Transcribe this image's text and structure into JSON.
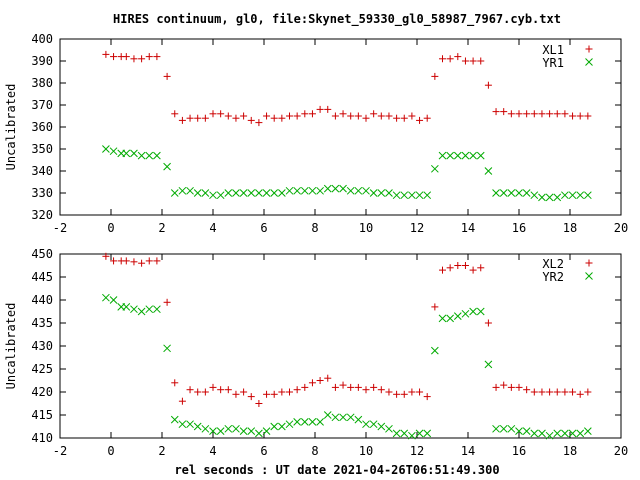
{
  "title": "HIRES continuum, gl0, file:Skynet_59330_gl0_58987_7967.cyb.txt",
  "colors": {
    "red": "#cc0000",
    "green": "#00aa00",
    "axis": "#000000"
  },
  "chart_data": [
    {
      "type": "scatter",
      "panel": "top",
      "ylabel": "Uncalibrated",
      "xlabel": "",
      "xlim": [
        -2,
        20
      ],
      "ylim": [
        320,
        400
      ],
      "xticks": [
        -2,
        0,
        2,
        4,
        6,
        8,
        10,
        12,
        14,
        16,
        18,
        20
      ],
      "yticks": [
        320,
        330,
        340,
        350,
        360,
        370,
        380,
        390,
        400
      ],
      "legend_position": "top-right",
      "series": [
        {
          "name": "XL1",
          "marker": "plus",
          "color": "#cc0000",
          "x": [
            -0.2,
            0.1,
            0.4,
            0.6,
            0.9,
            1.2,
            1.5,
            1.8,
            2.2,
            2.5,
            2.8,
            3.1,
            3.4,
            3.7,
            4.0,
            4.3,
            4.6,
            4.9,
            5.2,
            5.5,
            5.8,
            6.1,
            6.4,
            6.7,
            7.0,
            7.3,
            7.6,
            7.9,
            8.2,
            8.5,
            8.8,
            9.1,
            9.4,
            9.7,
            10.0,
            10.3,
            10.6,
            10.9,
            11.2,
            11.5,
            11.8,
            12.1,
            12.4,
            12.7,
            13.0,
            13.3,
            13.6,
            13.9,
            14.2,
            14.5,
            14.8,
            15.1,
            15.4,
            15.7,
            16.0,
            16.3,
            16.6,
            16.9,
            17.2,
            17.5,
            17.8,
            18.1,
            18.4,
            18.7
          ],
          "y": [
            393,
            392,
            392,
            392,
            391,
            391,
            392,
            392,
            383,
            366,
            363,
            364,
            364,
            364,
            366,
            366,
            365,
            364,
            365,
            363,
            362,
            365,
            364,
            364,
            365,
            365,
            366,
            366,
            368,
            368,
            365,
            366,
            365,
            365,
            364,
            366,
            365,
            365,
            364,
            364,
            365,
            363,
            364,
            383,
            391,
            391,
            392,
            390,
            390,
            390,
            379,
            367,
            367,
            366,
            366,
            366,
            366,
            366,
            366,
            366,
            366,
            365,
            365,
            365
          ]
        },
        {
          "name": "YR1",
          "marker": "x",
          "color": "#00aa00",
          "x": [
            -0.2,
            0.1,
            0.4,
            0.6,
            0.9,
            1.2,
            1.5,
            1.8,
            2.2,
            2.5,
            2.8,
            3.1,
            3.4,
            3.7,
            4.0,
            4.3,
            4.6,
            4.9,
            5.2,
            5.5,
            5.8,
            6.1,
            6.4,
            6.7,
            7.0,
            7.3,
            7.6,
            7.9,
            8.2,
            8.5,
            8.8,
            9.1,
            9.4,
            9.7,
            10.0,
            10.3,
            10.6,
            10.9,
            11.2,
            11.5,
            11.8,
            12.1,
            12.4,
            12.7,
            13.0,
            13.3,
            13.6,
            13.9,
            14.2,
            14.5,
            14.8,
            15.1,
            15.4,
            15.7,
            16.0,
            16.3,
            16.6,
            16.9,
            17.2,
            17.5,
            17.8,
            18.1,
            18.4,
            18.7
          ],
          "y": [
            350,
            349,
            348,
            348,
            348,
            347,
            347,
            347,
            342,
            330,
            331,
            331,
            330,
            330,
            329,
            329,
            330,
            330,
            330,
            330,
            330,
            330,
            330,
            330,
            331,
            331,
            331,
            331,
            331,
            332,
            332,
            332,
            331,
            331,
            331,
            330,
            330,
            330,
            329,
            329,
            329,
            329,
            329,
            341,
            347,
            347,
            347,
            347,
            347,
            347,
            340,
            330,
            330,
            330,
            330,
            330,
            329,
            328,
            328,
            328,
            329,
            329,
            329,
            329
          ]
        }
      ]
    },
    {
      "type": "scatter",
      "panel": "bottom",
      "ylabel": "Uncalibrated",
      "xlabel": "rel seconds : UT date 2021-04-26T06:51:49.300",
      "xlim": [
        -2,
        20
      ],
      "ylim": [
        410,
        450
      ],
      "xticks": [
        -2,
        0,
        2,
        4,
        6,
        8,
        10,
        12,
        14,
        16,
        18,
        20
      ],
      "yticks": [
        410,
        415,
        420,
        425,
        430,
        435,
        440,
        445,
        450
      ],
      "legend_position": "top-right",
      "series": [
        {
          "name": "XL2",
          "marker": "plus",
          "color": "#cc0000",
          "x": [
            -0.2,
            0.1,
            0.4,
            0.6,
            0.9,
            1.2,
            1.5,
            1.8,
            2.2,
            2.5,
            2.8,
            3.1,
            3.4,
            3.7,
            4.0,
            4.3,
            4.6,
            4.9,
            5.2,
            5.5,
            5.8,
            6.1,
            6.4,
            6.7,
            7.0,
            7.3,
            7.6,
            7.9,
            8.2,
            8.5,
            8.8,
            9.1,
            9.4,
            9.7,
            10.0,
            10.3,
            10.6,
            10.9,
            11.2,
            11.5,
            11.8,
            12.1,
            12.4,
            12.7,
            13.0,
            13.3,
            13.6,
            13.9,
            14.2,
            14.5,
            14.8,
            15.1,
            15.4,
            15.7,
            16.0,
            16.3,
            16.6,
            16.9,
            17.2,
            17.5,
            17.8,
            18.1,
            18.4,
            18.7
          ],
          "y": [
            449.5,
            448.5,
            448.5,
            448.5,
            448.3,
            448.0,
            448.5,
            448.5,
            439.5,
            422.0,
            418.0,
            420.5,
            420.0,
            420.0,
            421.0,
            420.5,
            420.5,
            419.5,
            420.0,
            419.0,
            417.5,
            419.5,
            419.5,
            420.0,
            420.0,
            420.5,
            421.0,
            422.0,
            422.5,
            423.0,
            421.0,
            421.5,
            421.0,
            421.0,
            420.5,
            421.0,
            420.5,
            420.0,
            419.5,
            419.5,
            420.0,
            420.0,
            419.0,
            438.5,
            446.5,
            447.0,
            447.5,
            447.5,
            446.5,
            447.0,
            435.0,
            421.0,
            421.5,
            421.0,
            421.0,
            420.5,
            420.0,
            420.0,
            420.0,
            420.0,
            420.0,
            420.0,
            419.5,
            420.0
          ]
        },
        {
          "name": "YR2",
          "marker": "x",
          "color": "#00aa00",
          "x": [
            -0.2,
            0.1,
            0.4,
            0.6,
            0.9,
            1.2,
            1.5,
            1.8,
            2.2,
            2.5,
            2.8,
            3.1,
            3.4,
            3.7,
            4.0,
            4.3,
            4.6,
            4.9,
            5.2,
            5.5,
            5.8,
            6.1,
            6.4,
            6.7,
            7.0,
            7.3,
            7.6,
            7.9,
            8.2,
            8.5,
            8.8,
            9.1,
            9.4,
            9.7,
            10.0,
            10.3,
            10.6,
            10.9,
            11.2,
            11.5,
            11.8,
            12.1,
            12.4,
            12.7,
            13.0,
            13.3,
            13.6,
            13.9,
            14.2,
            14.5,
            14.8,
            15.1,
            15.4,
            15.7,
            16.0,
            16.3,
            16.6,
            16.9,
            17.2,
            17.5,
            17.8,
            18.1,
            18.4,
            18.7
          ],
          "y": [
            440.5,
            440.0,
            438.5,
            438.5,
            438.0,
            437.5,
            438.0,
            438.0,
            429.5,
            414.0,
            413.0,
            413.0,
            412.5,
            412.0,
            411.5,
            411.5,
            412.0,
            412.0,
            411.5,
            411.5,
            411.0,
            411.5,
            412.5,
            412.5,
            413.0,
            413.5,
            413.5,
            413.5,
            413.5,
            415.0,
            414.5,
            414.5,
            414.5,
            414.0,
            413.0,
            413.0,
            412.5,
            412.0,
            411.0,
            411.0,
            410.5,
            411.0,
            411.0,
            429.0,
            436.0,
            436.0,
            436.5,
            437.0,
            437.5,
            437.5,
            426.0,
            412.0,
            412.0,
            412.0,
            411.5,
            411.5,
            411.0,
            411.0,
            410.5,
            411.0,
            411.0,
            411.0,
            411.0,
            411.5
          ]
        }
      ]
    }
  ]
}
